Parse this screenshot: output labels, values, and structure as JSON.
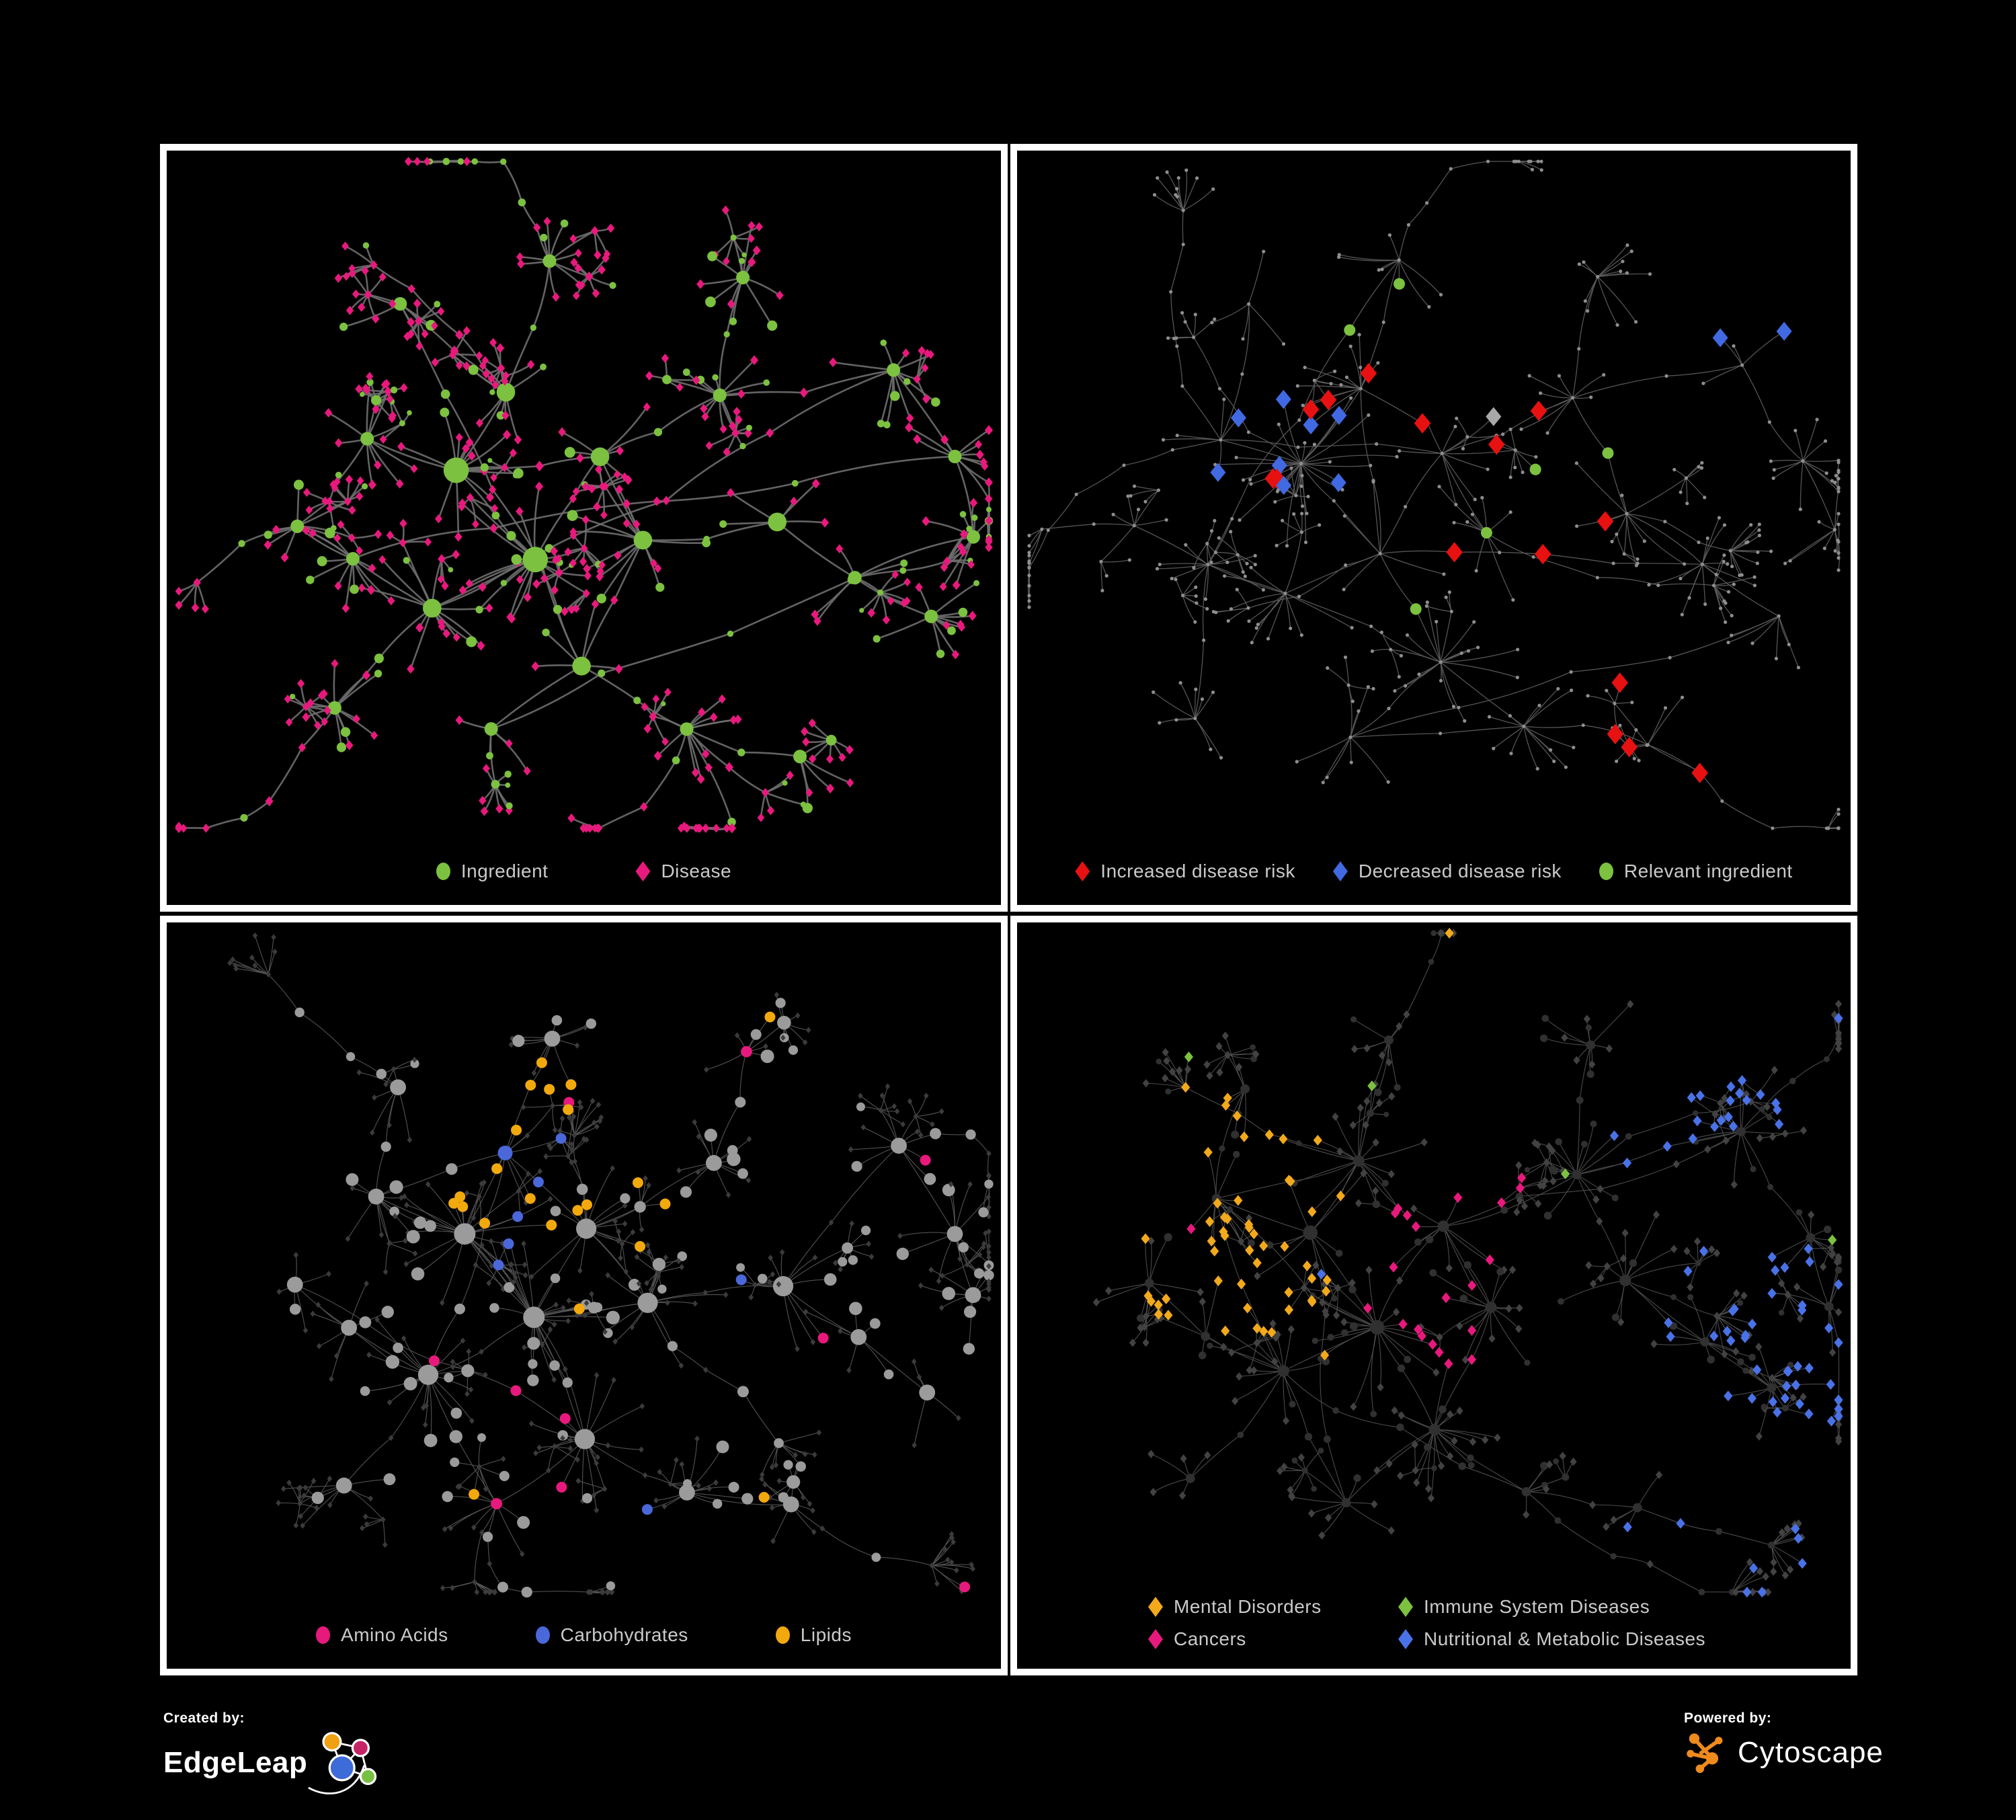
{
  "page": {
    "background": "#000000",
    "panel_border": "#FFFFFF"
  },
  "panels": [
    {
      "name": "ingredient-disease-network",
      "legend": {
        "items": [
          {
            "shape": "circle",
            "color": "#7CC140",
            "label": "Ingredient"
          },
          {
            "shape": "diamond",
            "color": "#E8197D",
            "label": "Disease"
          }
        ]
      },
      "network": {
        "mode": "full",
        "seed": 11,
        "edge_color": "#6E6E6E",
        "edge_width": 2.6
      }
    },
    {
      "name": "disease-risk-network",
      "legend": {
        "items": [
          {
            "shape": "diamond",
            "color": "#E81111",
            "label": "Increased disease risk"
          },
          {
            "shape": "diamond",
            "color": "#4169E1",
            "label": "Decreased disease risk"
          },
          {
            "shape": "circle",
            "color": "#7CC140",
            "label": "Relevant ingredient"
          }
        ]
      },
      "network": {
        "mode": "risk",
        "seed": 29,
        "edge_color": "#5D5D5D",
        "edge_width": 1.3,
        "base_color": "#8E8E8E",
        "neutral_color": "#A8A8A8"
      }
    },
    {
      "name": "nutrient-class-network",
      "legend": {
        "items": [
          {
            "shape": "circle",
            "color": "#E8197D",
            "label": "Amino Acids"
          },
          {
            "shape": "circle",
            "color": "#4A68D9",
            "label": "Carbohydrates"
          },
          {
            "shape": "circle",
            "color": "#F2A90D",
            "label": "Lipids"
          }
        ]
      },
      "network": {
        "mode": "nutrients",
        "seed": 43,
        "edge_color": "#585858",
        "edge_width": 1.15,
        "base_color": "#9B9B9B",
        "disease_color": "#3B3B3B"
      }
    },
    {
      "name": "disease-class-network",
      "legend": {
        "items": [
          {
            "shape": "diamond",
            "color": "#F2A91C",
            "label": "Mental Disorders"
          },
          {
            "shape": "diamond",
            "color": "#7CC140",
            "label": "Immune System Diseases"
          },
          {
            "shape": "diamond",
            "color": "#E8197D",
            "label": "Cancers"
          },
          {
            "shape": "diamond",
            "color": "#4A72E8",
            "label": "Nutritional & Metabolic Diseases"
          }
        ]
      },
      "network": {
        "mode": "classes",
        "seed": 57,
        "edge_color": "#525252",
        "edge_width": 1.1,
        "base_disease_color": "#424242",
        "base_ingredient_color": "#303030"
      }
    }
  ],
  "footer": {
    "created_by": {
      "label": "Created by:",
      "brand": "EdgeLeap"
    },
    "powered_by": {
      "label": "Powered by:",
      "brand": "Cytoscape"
    },
    "logo_colors": {
      "edgeleap_blue": "#3D6BD8",
      "edgeleap_orange": "#F0A013",
      "edgeleap_magenta": "#C62565",
      "edgeleap_green": "#76C043",
      "cytoscape_orange": "#EF8A1D"
    }
  }
}
